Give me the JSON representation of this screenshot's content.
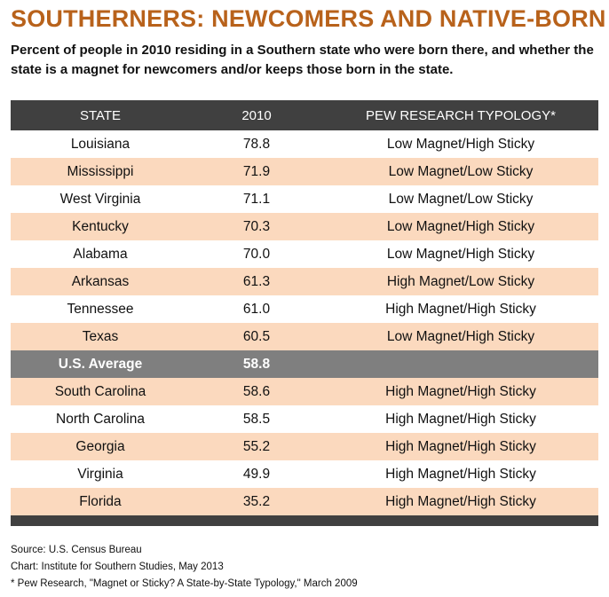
{
  "title": "SOUTHERNERS: NEWCOMERS AND NATIVE-BORN",
  "subtitle": "Percent of people in 2010 residing in a Southern state who were born there, and whether the state is a magnet for newcomers and/or keeps those born in the state.",
  "colors": {
    "title": "#b8621b",
    "header_bg": "#404040",
    "stripe": "#fbd9be",
    "average_bg": "#7f7f7f"
  },
  "table": {
    "headers": [
      "STATE",
      "2010",
      "PEW RESEARCH TYPOLOGY*"
    ],
    "rows": [
      {
        "state": "Louisiana",
        "value": "78.8",
        "typology": "Low Magnet/High Sticky"
      },
      {
        "state": "Mississippi",
        "value": "71.9",
        "typology": "Low Magnet/Low Sticky"
      },
      {
        "state": "West Virginia",
        "value": "71.1",
        "typology": "Low Magnet/Low Sticky"
      },
      {
        "state": "Kentucky",
        "value": "70.3",
        "typology": "Low Magnet/High Sticky"
      },
      {
        "state": "Alabama",
        "value": "70.0",
        "typology": "Low Magnet/High Sticky"
      },
      {
        "state": "Arkansas",
        "value": "61.3",
        "typology": "High Magnet/Low Sticky"
      },
      {
        "state": "Tennessee",
        "value": "61.0",
        "typology": "High Magnet/High Sticky"
      },
      {
        "state": "Texas",
        "value": "60.5",
        "typology": "Low Magnet/High Sticky"
      },
      {
        "state": "U.S. Average",
        "value": "58.8",
        "typology": "",
        "average": true
      },
      {
        "state": "South Carolina",
        "value": "58.6",
        "typology": "High Magnet/High Sticky"
      },
      {
        "state": "North Carolina",
        "value": "58.5",
        "typology": "High Magnet/High Sticky"
      },
      {
        "state": "Georgia",
        "value": "55.2",
        "typology": "High Magnet/High Sticky"
      },
      {
        "state": "Virginia",
        "value": "49.9",
        "typology": "High Magnet/High Sticky"
      },
      {
        "state": "Florida",
        "value": "35.2",
        "typology": "High Magnet/High Sticky"
      }
    ]
  },
  "notes": {
    "source": "Source: U.S. Census Bureau",
    "chart": "Chart: Institute for Southern Studies, May 2013",
    "footnote": "* Pew Research, \"Magnet or Sticky? A State-by-State Typology,\" March 2009"
  }
}
